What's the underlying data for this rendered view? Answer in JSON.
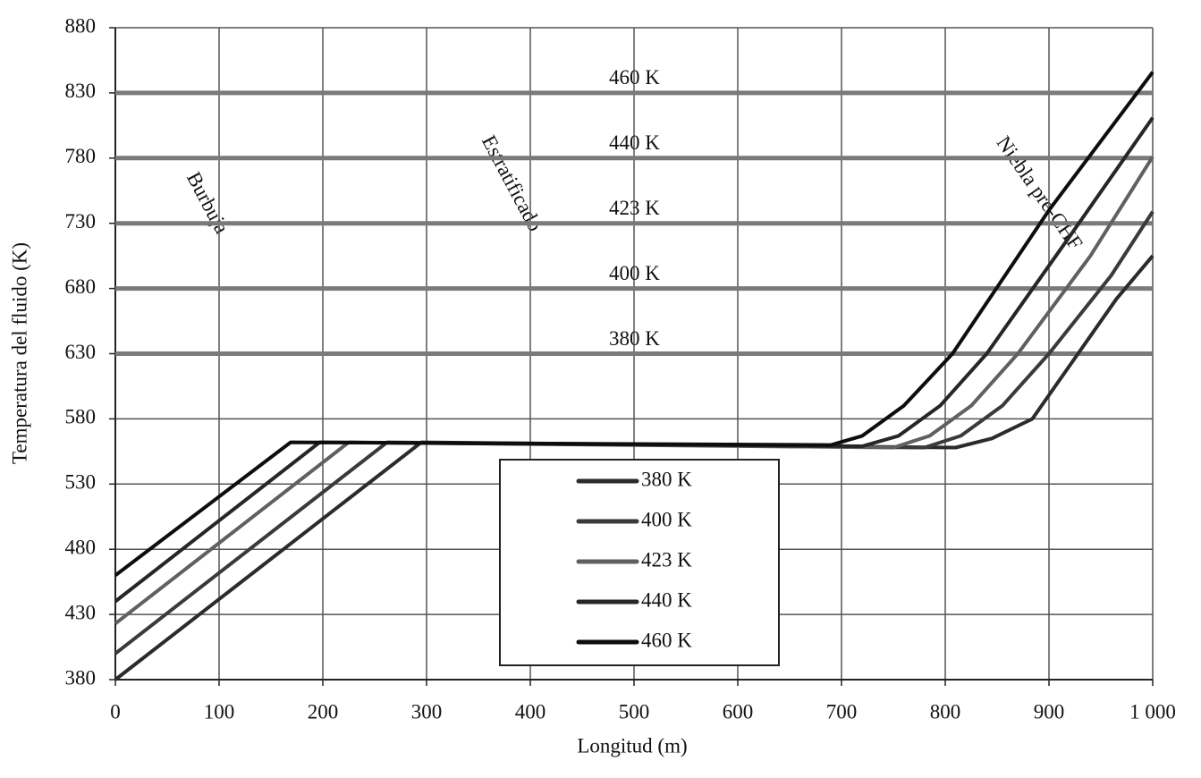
{
  "chart_data": {
    "type": "line",
    "x_label": "Longitud (m)",
    "y_label": "Temperatura del fluido (K)",
    "xlim": [
      0,
      1000
    ],
    "ylim": [
      380,
      880
    ],
    "xticks": [
      0,
      100,
      200,
      300,
      400,
      500,
      600,
      700,
      800,
      900,
      {
        "value": 1000,
        "label": "1 000"
      }
    ],
    "yticks": [
      380,
      430,
      480,
      530,
      580,
      630,
      680,
      730,
      780,
      830,
      880
    ],
    "grid": true,
    "reference_lines": [
      {
        "value": 830,
        "label": "460 K"
      },
      {
        "value": 780,
        "label": "440 K"
      },
      {
        "value": 730,
        "label": "423 K"
      },
      {
        "value": 680,
        "label": "400 K"
      },
      {
        "value": 630,
        "label": "380 K"
      }
    ],
    "reference_color": "#7a7a7a",
    "annotations": [
      "Burbuja",
      "Estratificado",
      "Niebla pre-CHF"
    ],
    "series": [
      {
        "name": "380 K",
        "color": "#2b2b2b",
        "x": [
          0,
          295,
          810,
          845,
          884,
          928,
          965,
          1000
        ],
        "values": [
          380,
          562,
          558,
          565,
          580,
          630,
          672,
          705
        ]
      },
      {
        "name": "400 K",
        "color": "#3a3a3a",
        "x": [
          0,
          262,
          780,
          815,
          855,
          900,
          960,
          1000
        ],
        "values": [
          400,
          562,
          558,
          567,
          590,
          630,
          690,
          739
        ]
      },
      {
        "name": "423 K",
        "color": "#606060",
        "x": [
          0,
          225,
          750,
          785,
          825,
          870,
          940,
          1000
        ],
        "values": [
          423,
          562,
          558,
          567,
          590,
          630,
          705,
          781
        ]
      },
      {
        "name": "440 K",
        "color": "#262626",
        "x": [
          0,
          197,
          720,
          755,
          795,
          840,
          920,
          1000
        ],
        "values": [
          440,
          562,
          559,
          567,
          590,
          630,
          720,
          811
        ]
      },
      {
        "name": "460 K",
        "color": "#0d0d0d",
        "x": [
          0,
          169,
          690,
          720,
          760,
          807,
          900,
          1000
        ],
        "values": [
          460,
          562,
          560,
          567,
          590,
          630,
          740,
          846
        ]
      }
    ]
  }
}
